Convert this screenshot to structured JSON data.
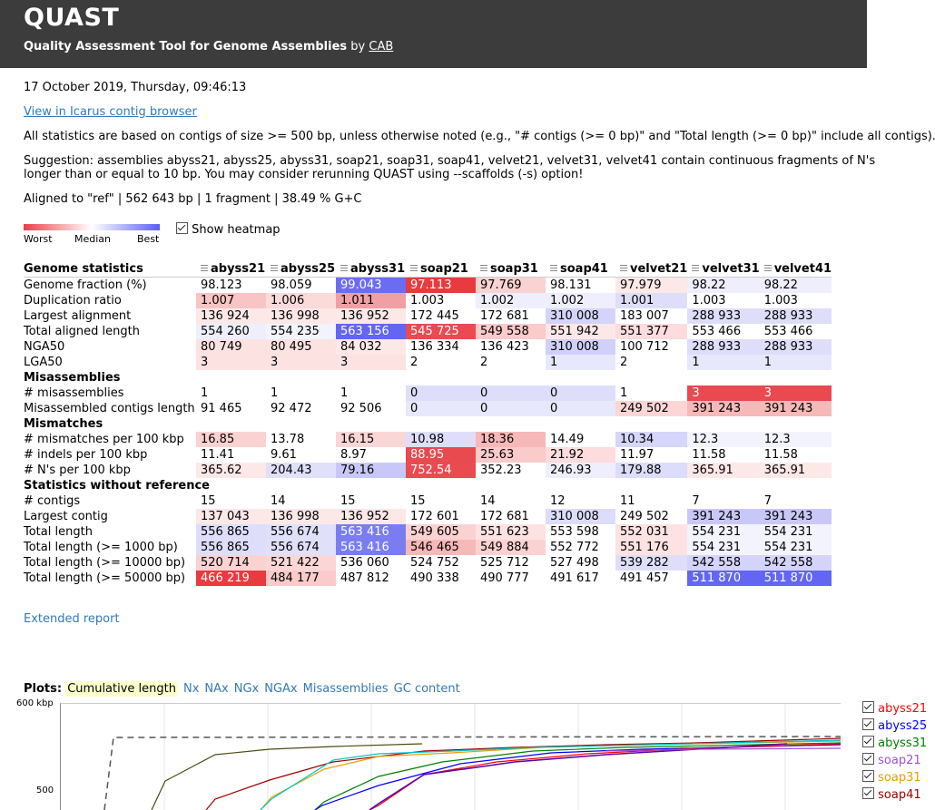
{
  "header": {
    "title": "QUAST",
    "subtitle": "Quality Assessment Tool for Genome Assemblies",
    "by": "by",
    "author_link": "CAB"
  },
  "report": {
    "datetime": "17 October 2019, Thursday, 09:46:13",
    "icarus_link": "View in Icarus contig browser",
    "stats_note": "All statistics are based on contigs of size >= 500 bp, unless otherwise noted (e.g., \"# contigs (>= 0 bp)\" and \"Total length (>= 0 bp)\" include all contigs).",
    "suggestion": "Suggestion: assemblies abyss21, abyss25, abyss31, soap21, soap31, soap41, velvet21, velvet31, velvet41 contain continuous fragments of N's longer than or equal to 10 bp. You may consider rerunning QUAST using --scaffolds (-s) option!",
    "aligned": "Aligned to \"ref\" | 562 643 bp | 1 fragment | 38.49 % G+C"
  },
  "heatmap": {
    "worst": "Worst",
    "median": "Median",
    "best": "Best",
    "show_label": "Show heatmap"
  },
  "table": {
    "header_label": "Genome statistics",
    "columns": [
      "abyss21",
      "abyss25",
      "abyss31",
      "soap21",
      "soap31",
      "soap41",
      "velvet21",
      "velvet31",
      "velvet41"
    ],
    "sections": [
      {
        "title": "Genome statistics",
        "rows": [
          {
            "label": "Genome fraction (%)",
            "cells": [
              [
                "98.123",
                ""
              ],
              [
                "98.059",
                ""
              ],
              [
                "99.043",
                "#6a6df2"
              ],
              [
                "97.113",
                "#e83a3f"
              ],
              [
                "97.769",
                "#fbd2d2"
              ],
              [
                "98.131",
                ""
              ],
              [
                "97.979",
                "#fde8e8"
              ],
              [
                "98.22",
                "#eeeefd"
              ],
              [
                "98.22",
                "#eeeefd"
              ]
            ]
          },
          {
            "label": "Duplication ratio",
            "cells": [
              [
                "1.007",
                "#f8c4c4"
              ],
              [
                "1.006",
                "#fbdada"
              ],
              [
                "1.011",
                "#f0a0a4"
              ],
              [
                "1.003",
                ""
              ],
              [
                "1.002",
                "#eeeefd"
              ],
              [
                "1.002",
                "#eeeefd"
              ],
              [
                "1.001",
                "#dedefb"
              ],
              [
                "1.003",
                ""
              ],
              [
                "1.003",
                ""
              ]
            ]
          },
          {
            "label": "Largest alignment",
            "cells": [
              [
                "136 924",
                "#fde8e8"
              ],
              [
                "136 998",
                "#fde8e8"
              ],
              [
                "136 952",
                "#fde8e8"
              ],
              [
                "172 445",
                ""
              ],
              [
                "172 681",
                ""
              ],
              [
                "310 008",
                "#d4d4fa"
              ],
              [
                "183 007",
                ""
              ],
              [
                "288 933",
                "#dedefb"
              ],
              [
                "288 933",
                "#dedefb"
              ]
            ]
          },
          {
            "label": "Total aligned length",
            "cells": [
              [
                "554 260",
                "#eeeefd"
              ],
              [
                "554 235",
                "#f3f3fd"
              ],
              [
                "563 156",
                "#6266f2"
              ],
              [
                "545 725",
                "#ea4a50"
              ],
              [
                "549 558",
                "#fbcaca"
              ],
              [
                "551 942",
                "#fde8e8"
              ],
              [
                "551 377",
                "#fcdcdc"
              ],
              [
                "553 466",
                ""
              ],
              [
                "553 466",
                ""
              ]
            ]
          },
          {
            "label": "NGA50",
            "cells": [
              [
                "80 749",
                "#fde2e2"
              ],
              [
                "80 495",
                "#fde2e2"
              ],
              [
                "84 032",
                "#fde8e8"
              ],
              [
                "136 334",
                ""
              ],
              [
                "136 423",
                ""
              ],
              [
                "310 008",
                "#d0d0fa"
              ],
              [
                "100 712",
                ""
              ],
              [
                "288 933",
                "#dedefb"
              ],
              [
                "288 933",
                "#dedefb"
              ]
            ]
          },
          {
            "label": "LGA50",
            "cells": [
              [
                "3",
                "#fde2e2"
              ],
              [
                "3",
                "#fde2e2"
              ],
              [
                "3",
                "#fde2e2"
              ],
              [
                "2",
                ""
              ],
              [
                "2",
                ""
              ],
              [
                "1",
                "#e8e8fc"
              ],
              [
                "2",
                ""
              ],
              [
                "1",
                "#e8e8fc"
              ],
              [
                "1",
                "#e8e8fc"
              ]
            ]
          }
        ]
      },
      {
        "title": "Misassemblies",
        "rows": [
          {
            "label": "# misassemblies",
            "cells": [
              [
                "1",
                ""
              ],
              [
                "1",
                ""
              ],
              [
                "1",
                ""
              ],
              [
                "0",
                "#dedefb"
              ],
              [
                "0",
                "#dedefb"
              ],
              [
                "0",
                "#dedefb"
              ],
              [
                "1",
                ""
              ],
              [
                "3",
                "#e84a50"
              ],
              [
                "3",
                "#e84a50"
              ]
            ]
          },
          {
            "label": "Misassembled contigs length",
            "cells": [
              [
                "91 465",
                ""
              ],
              [
                "92 472",
                ""
              ],
              [
                "92 506",
                ""
              ],
              [
                "0",
                "#e8e8fc"
              ],
              [
                "0",
                "#e8e8fc"
              ],
              [
                "0",
                "#e8e8fc"
              ],
              [
                "249 502",
                "#fcd6d6"
              ],
              [
                "391 243",
                "#f7b8b8"
              ],
              [
                "391 243",
                "#f7b8b8"
              ]
            ]
          }
        ]
      },
      {
        "title": "Mismatches",
        "rows": [
          {
            "label": "# mismatches per 100 kbp",
            "cells": [
              [
                "16.85",
                "#fbd2d2"
              ],
              [
                "13.78",
                ""
              ],
              [
                "16.15",
                "#fbd6d6"
              ],
              [
                "10.98",
                "#dedefb"
              ],
              [
                "18.36",
                "#f7b8b8"
              ],
              [
                "14.49",
                ""
              ],
              [
                "10.34",
                "#d6d6fa"
              ],
              [
                "12.3",
                "#f3f3fd"
              ],
              [
                "12.3",
                "#f3f3fd"
              ]
            ]
          },
          {
            "label": "# indels per 100 kbp",
            "cells": [
              [
                "11.41",
                ""
              ],
              [
                "9.61",
                ""
              ],
              [
                "8.97",
                ""
              ],
              [
                "88.95",
                "#e84a50"
              ],
              [
                "25.63",
                "#fbcaca"
              ],
              [
                "21.92",
                "#fcdcdc"
              ],
              [
                "11.97",
                ""
              ],
              [
                "11.58",
                ""
              ],
              [
                "11.58",
                ""
              ]
            ]
          },
          {
            "label": "# N's per 100 kbp",
            "cells": [
              [
                "365.62",
                "#fde8e8"
              ],
              [
                "204.43",
                "#e0e0fb"
              ],
              [
                "79.16",
                "#c8c8f8"
              ],
              [
                "752.54",
                "#ea4a50"
              ],
              [
                "352.23",
                ""
              ],
              [
                "246.93",
                "#eeeefd"
              ],
              [
                "179.88",
                "#dcdcfb"
              ],
              [
                "365.91",
                "#fde8e8"
              ],
              [
                "365.91",
                "#fde8e8"
              ]
            ]
          }
        ]
      },
      {
        "title": "Statistics without reference",
        "rows": [
          {
            "label": "# contigs",
            "cells": [
              [
                "15",
                ""
              ],
              [
                "14",
                ""
              ],
              [
                "15",
                ""
              ],
              [
                "15",
                ""
              ],
              [
                "14",
                ""
              ],
              [
                "12",
                ""
              ],
              [
                "11",
                ""
              ],
              [
                "7",
                ""
              ],
              [
                "7",
                ""
              ]
            ]
          },
          {
            "label": "Largest contig",
            "cells": [
              [
                "137 043",
                "#fde8e8"
              ],
              [
                "136 998",
                "#fde8e8"
              ],
              [
                "136 952",
                "#fde8e8"
              ],
              [
                "172 601",
                ""
              ],
              [
                "172 681",
                ""
              ],
              [
                "310 008",
                "#dcdcfb"
              ],
              [
                "249 502",
                ""
              ],
              [
                "391 243",
                "#c8c8f8"
              ],
              [
                "391 243",
                "#c8c8f8"
              ]
            ]
          },
          {
            "label": "Total length",
            "cells": [
              [
                "556 865",
                "#dedefb"
              ],
              [
                "556 674",
                "#e0e0fb"
              ],
              [
                "563 416",
                "#7a7df2"
              ],
              [
                "549 605",
                "#fbd2d2"
              ],
              [
                "551 623",
                "#fde2e2"
              ],
              [
                "553 598",
                ""
              ],
              [
                "552 031",
                "#fde2e2"
              ],
              [
                "554 231",
                "#f3f3fd"
              ],
              [
                "554 231",
                "#f3f3fd"
              ]
            ]
          },
          {
            "label": "Total length (>= 1000 bp)",
            "cells": [
              [
                "556 865",
                "#dedefb"
              ],
              [
                "556 674",
                "#e0e0fb"
              ],
              [
                "563 416",
                "#7a7df2"
              ],
              [
                "546 465",
                "#f7b8b8"
              ],
              [
                "549 884",
                "#fbd2d2"
              ],
              [
                "552 772",
                ""
              ],
              [
                "551 176",
                "#fde2e2"
              ],
              [
                "554 231",
                "#f3f3fd"
              ],
              [
                "554 231",
                "#f3f3fd"
              ]
            ]
          },
          {
            "label": "Total length (>= 10000 bp)",
            "cells": [
              [
                "520 714",
                "#fbd2d2"
              ],
              [
                "521 422",
                "#fbd6d6"
              ],
              [
                "536 060",
                ""
              ],
              [
                "524 752",
                ""
              ],
              [
                "525 712",
                ""
              ],
              [
                "527 498",
                ""
              ],
              [
                "539 282",
                "#dedefb"
              ],
              [
                "542 558",
                "#d4d4fa"
              ],
              [
                "542 558",
                "#d4d4fa"
              ]
            ]
          },
          {
            "label": "Total length (>= 50000 bp)",
            "cells": [
              [
                "466 219",
                "#e83a3f"
              ],
              [
                "484 177",
                "#fbcaca"
              ],
              [
                "487 812",
                ""
              ],
              [
                "490 338",
                ""
              ],
              [
                "490 777",
                ""
              ],
              [
                "491 617",
                ""
              ],
              [
                "491 457",
                ""
              ],
              [
                "511 870",
                "#6266f2"
              ],
              [
                "511 870",
                "#6266f2"
              ]
            ]
          }
        ]
      }
    ]
  },
  "extended_report": "Extended report",
  "plots": {
    "label": "Plots:",
    "tabs": [
      "Cumulative length",
      "Nx",
      "NAx",
      "NGx",
      "NGAx",
      "Misassemblies",
      "GC content"
    ],
    "active_tab": "Cumulative length",
    "y_ticks": [
      "600 kbp",
      "500"
    ],
    "legend": [
      {
        "name": "abyss21",
        "color": "#ff0000"
      },
      {
        "name": "abyss25",
        "color": "#0000ff"
      },
      {
        "name": "abyss31",
        "color": "#008000"
      },
      {
        "name": "soap21",
        "color": "#a050d0"
      },
      {
        "name": "soap31",
        "color": "#e8a000"
      },
      {
        "name": "soap41",
        "color": "#a00000"
      }
    ]
  }
}
